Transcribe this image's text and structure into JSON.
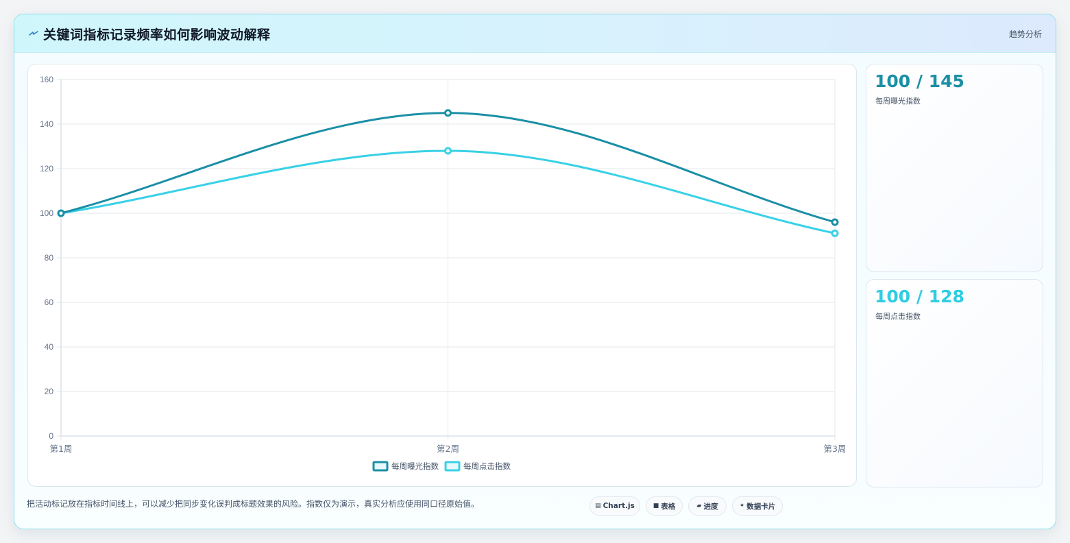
{
  "header": {
    "title": "关键词指标记录频率如何影响波动解释",
    "title_icon": "lightning-icon",
    "tag": "趋势分析"
  },
  "colors": {
    "series1": "#1a8fa6",
    "series2": "#38d1e6",
    "grid": "#e5e7eb",
    "tick": "#64748b"
  },
  "chart_data": {
    "type": "line",
    "categories": [
      "第1周",
      "第2周",
      "第3周"
    ],
    "series": [
      {
        "name": "每周曝光指数",
        "values": [
          100,
          145,
          96
        ],
        "color": "#1a8fa6"
      },
      {
        "name": "每周点击指数",
        "values": [
          100,
          128,
          91
        ],
        "color": "#38d1e6"
      }
    ],
    "ylim": [
      0,
      160
    ],
    "yticks": [
      0,
      20,
      40,
      60,
      80,
      100,
      120,
      140,
      160
    ],
    "grid": true,
    "legend": "bottom-center",
    "smooth": true
  },
  "stats": [
    {
      "value": "100 / 145",
      "label": "每周曝光指数",
      "color": "#1a8fa6"
    },
    {
      "value": "100 / 128",
      "label": "每周点击指数",
      "color": "#2fcde2"
    }
  ],
  "footnote": "把活动标记放在指标时间线上，可以减少把同步变化误判成标题效果的风险。指数仅为演示，真实分析应使用同口径原始值。",
  "chips": [
    {
      "label": "Chart.js",
      "icon": "chart-icon",
      "glyph": "▤"
    },
    {
      "label": "表格",
      "icon": "table-icon",
      "glyph": "■"
    },
    {
      "label": "进度",
      "icon": "progress-icon",
      "glyph": "▰"
    },
    {
      "label": "数据卡片",
      "icon": "sparkle-icon",
      "glyph": "✦"
    }
  ]
}
